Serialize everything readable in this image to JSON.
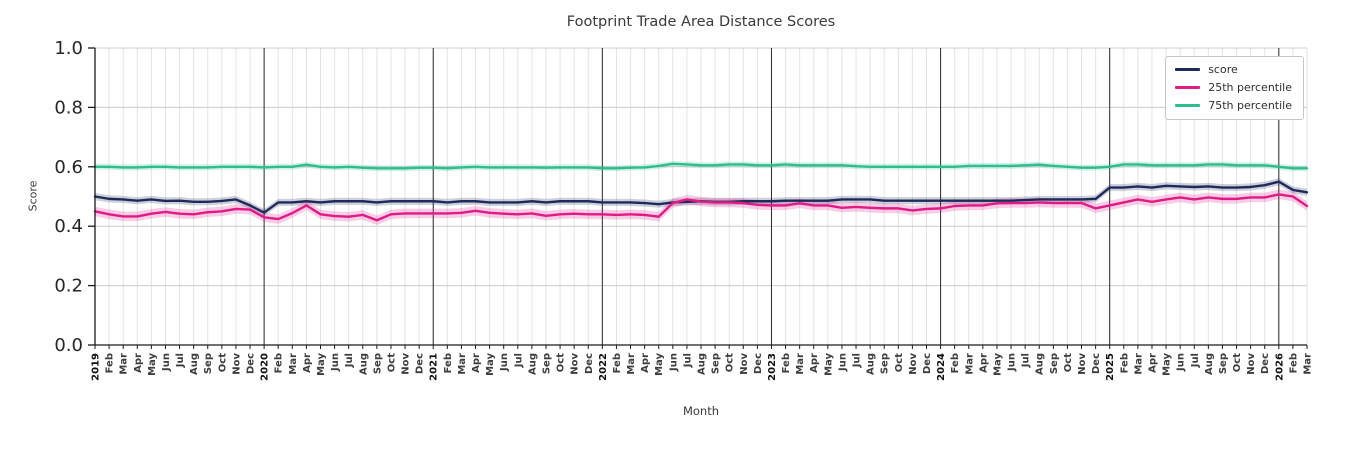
{
  "chart_data": {
    "type": "line",
    "title": "Footprint Trade Area Distance Scores",
    "xlabel": "Month",
    "ylabel": "Score",
    "ylim": [
      0.0,
      1.0
    ],
    "grid": true,
    "legend_position": "upper right",
    "yticks": [
      0.0,
      0.2,
      0.4,
      0.6,
      0.8,
      1.0
    ],
    "y_tick_labels": [
      "0.0",
      "0.2",
      "0.4",
      "0.6",
      "0.8",
      "1.0"
    ],
    "year_line_indices": [
      12,
      24,
      36,
      48,
      60,
      72,
      84
    ],
    "x_labels": [
      "2019",
      "Feb",
      "Mar",
      "Apr",
      "May",
      "Jun",
      "Jul",
      "Aug",
      "Sep",
      "Oct",
      "Nov",
      "Dec",
      "2020",
      "Feb",
      "Mar",
      "Apr",
      "May",
      "Jun",
      "Jul",
      "Aug",
      "Sep",
      "Oct",
      "Nov",
      "Dec",
      "2021",
      "Feb",
      "Mar",
      "Apr",
      "May",
      "Jun",
      "Jul",
      "Aug",
      "Sep",
      "Oct",
      "Nov",
      "Dec",
      "2022",
      "Feb",
      "Mar",
      "Apr",
      "May",
      "Jun",
      "Jul",
      "Aug",
      "Sep",
      "Oct",
      "Nov",
      "Dec",
      "2023",
      "Feb",
      "Mar",
      "Apr",
      "May",
      "Jun",
      "Jul",
      "Aug",
      "Sep",
      "Oct",
      "Nov",
      "Dec",
      "2024",
      "Feb",
      "Mar",
      "Apr",
      "May",
      "Jun",
      "Jul",
      "Aug",
      "Sep",
      "Oct",
      "Nov",
      "Dec",
      "2025",
      "Feb",
      "Mar",
      "Apr",
      "May",
      "Jun",
      "Jul",
      "Aug",
      "Sep",
      "Oct",
      "Nov",
      "Dec",
      "2026",
      "Feb",
      "Mar"
    ],
    "series": [
      {
        "name": "score",
        "color": "#1e2b5a",
        "band": 0.012,
        "values": [
          0.5,
          0.492,
          0.49,
          0.486,
          0.49,
          0.485,
          0.486,
          0.482,
          0.482,
          0.485,
          0.49,
          0.47,
          0.446,
          0.48,
          0.48,
          0.484,
          0.48,
          0.484,
          0.484,
          0.484,
          0.48,
          0.484,
          0.484,
          0.484,
          0.484,
          0.48,
          0.484,
          0.484,
          0.48,
          0.48,
          0.48,
          0.484,
          0.48,
          0.484,
          0.484,
          0.484,
          0.48,
          0.48,
          0.48,
          0.478,
          0.474,
          0.48,
          0.482,
          0.484,
          0.482,
          0.482,
          0.484,
          0.484,
          0.484,
          0.486,
          0.486,
          0.486,
          0.486,
          0.49,
          0.49,
          0.49,
          0.486,
          0.486,
          0.486,
          0.486,
          0.486,
          0.486,
          0.486,
          0.486,
          0.486,
          0.486,
          0.488,
          0.49,
          0.49,
          0.49,
          0.49,
          0.492,
          0.53,
          0.53,
          0.534,
          0.53,
          0.536,
          0.534,
          0.532,
          0.534,
          0.53,
          0.53,
          0.532,
          0.538,
          0.55,
          0.522,
          0.514
        ]
      },
      {
        "name": "25th percentile",
        "color": "#e01a87",
        "band": 0.016,
        "values": [
          0.45,
          0.44,
          0.433,
          0.433,
          0.442,
          0.448,
          0.442,
          0.44,
          0.447,
          0.45,
          0.458,
          0.456,
          0.43,
          0.424,
          0.444,
          0.47,
          0.44,
          0.434,
          0.432,
          0.438,
          0.42,
          0.44,
          0.443,
          0.443,
          0.443,
          0.443,
          0.445,
          0.452,
          0.445,
          0.442,
          0.44,
          0.443,
          0.435,
          0.44,
          0.442,
          0.44,
          0.44,
          0.438,
          0.44,
          0.438,
          0.432,
          0.478,
          0.49,
          0.483,
          0.48,
          0.48,
          0.478,
          0.472,
          0.47,
          0.47,
          0.477,
          0.47,
          0.47,
          0.462,
          0.465,
          0.462,
          0.46,
          0.46,
          0.453,
          0.458,
          0.46,
          0.468,
          0.47,
          0.47,
          0.477,
          0.478,
          0.478,
          0.48,
          0.478,
          0.478,
          0.478,
          0.46,
          0.47,
          0.48,
          0.49,
          0.482,
          0.49,
          0.497,
          0.49,
          0.497,
          0.492,
          0.492,
          0.497,
          0.497,
          0.507,
          0.5,
          0.468
        ]
      },
      {
        "name": "75th percentile",
        "color": "#2dbd8f",
        "band": 0.01,
        "values": [
          0.6,
          0.6,
          0.598,
          0.598,
          0.6,
          0.6,
          0.598,
          0.598,
          0.598,
          0.6,
          0.6,
          0.6,
          0.598,
          0.6,
          0.6,
          0.607,
          0.6,
          0.598,
          0.6,
          0.597,
          0.595,
          0.595,
          0.595,
          0.597,
          0.597,
          0.595,
          0.598,
          0.6,
          0.598,
          0.598,
          0.598,
          0.598,
          0.597,
          0.598,
          0.598,
          0.598,
          0.595,
          0.595,
          0.597,
          0.598,
          0.603,
          0.61,
          0.608,
          0.605,
          0.605,
          0.608,
          0.608,
          0.605,
          0.605,
          0.608,
          0.605,
          0.605,
          0.605,
          0.605,
          0.602,
          0.6,
          0.6,
          0.6,
          0.6,
          0.6,
          0.6,
          0.6,
          0.603,
          0.603,
          0.603,
          0.603,
          0.605,
          0.607,
          0.603,
          0.6,
          0.597,
          0.597,
          0.6,
          0.608,
          0.608,
          0.605,
          0.605,
          0.605,
          0.605,
          0.608,
          0.608,
          0.605,
          0.605,
          0.605,
          0.6,
          0.595,
          0.595
        ]
      }
    ]
  }
}
